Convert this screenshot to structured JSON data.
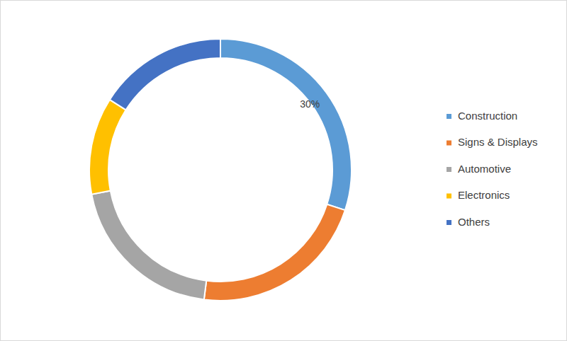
{
  "chart_data": {
    "type": "donut",
    "categories": [
      "Construction",
      "Signs & Displays",
      "Automotive",
      "Electronics",
      "Others"
    ],
    "values": [
      30,
      22,
      20,
      12,
      16
    ],
    "value_labels": [
      "30%",
      null,
      null,
      null,
      null
    ],
    "colors": [
      "#5b9bd5",
      "#ed7d31",
      "#a5a5a5",
      "#ffc000",
      "#4472c4"
    ],
    "legend": "right"
  }
}
